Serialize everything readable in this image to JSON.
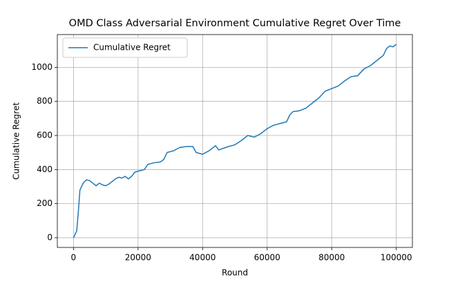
{
  "chart_data": {
    "type": "line",
    "title": "OMD Class Adversarial Environment Cumulative Regret Over Time",
    "x_label": "Round",
    "y_label": "Cumulative Regret",
    "x": [
      0,
      500,
      1000,
      1500,
      2000,
      3000,
      4000,
      5000,
      6000,
      7000,
      8000,
      9000,
      10000,
      11000,
      12000,
      13000,
      14000,
      15000,
      16000,
      17000,
      18000,
      19000,
      20000,
      22000,
      23000,
      25000,
      27000,
      28000,
      29000,
      31000,
      33000,
      35000,
      37000,
      38000,
      40000,
      42000,
      44000,
      45000,
      48000,
      50000,
      52000,
      54000,
      56000,
      58000,
      60000,
      62000,
      64000,
      66000,
      67000,
      68000,
      70000,
      72000,
      74000,
      76000,
      78000,
      80000,
      82000,
      84000,
      86000,
      88000,
      90000,
      92000,
      94000,
      96000,
      97000,
      98000,
      99000,
      100000
    ],
    "series": [
      {
        "name": "Cumulative Regret",
        "color": "#1f77b4",
        "values": [
          0,
          20,
          40,
          150,
          280,
          320,
          340,
          335,
          320,
          305,
          320,
          310,
          305,
          315,
          330,
          345,
          355,
          350,
          360,
          345,
          360,
          385,
          390,
          400,
          430,
          440,
          445,
          460,
          500,
          510,
          530,
          535,
          535,
          500,
          490,
          510,
          540,
          515,
          535,
          545,
          570,
          600,
          590,
          610,
          640,
          660,
          670,
          680,
          720,
          740,
          745,
          760,
          790,
          820,
          860,
          875,
          890,
          920,
          945,
          950,
          990,
          1010,
          1040,
          1070,
          1110,
          1125,
          1120,
          1135
        ]
      }
    ],
    "xlim": [
      -5000,
      105000
    ],
    "ylim": [
      -57,
      1192
    ],
    "xticks": [
      0,
      20000,
      40000,
      60000,
      80000,
      100000
    ],
    "yticks": [
      0,
      200,
      400,
      600,
      800,
      1000
    ],
    "grid": true,
    "legend": "upper left"
  }
}
